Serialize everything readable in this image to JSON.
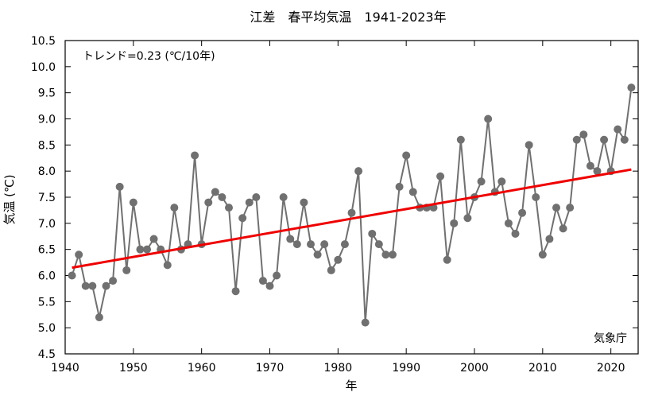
{
  "chart_data": {
    "type": "line",
    "title": "江差　春平均気温　1941-2023年",
    "xlabel": "年",
    "ylabel": "気温 (℃)",
    "annotation": "トレンド=0.23 (℃/10年)",
    "source": "気象庁",
    "xlim": [
      1940,
      2024
    ],
    "ylim": [
      4.5,
      10.5
    ],
    "x_ticks": [
      "1940",
      "1950",
      "1960",
      "1970",
      "1980",
      "1990",
      "2000",
      "2010",
      "2020"
    ],
    "y_ticks": [
      "4.5",
      "5.0",
      "5.5",
      "6.0",
      "6.5",
      "7.0",
      "7.5",
      "8.0",
      "8.5",
      "9.0",
      "9.5",
      "10.0",
      "10.5"
    ],
    "grid": false,
    "series": [
      {
        "color": "#707070",
        "x": [
          1941,
          1942,
          1943,
          1944,
          1945,
          1946,
          1947,
          1948,
          1949,
          1950,
          1951,
          1952,
          1953,
          1954,
          1955,
          1956,
          1957,
          1958,
          1959,
          1960,
          1961,
          1962,
          1963,
          1964,
          1965,
          1966,
          1967,
          1968,
          1969,
          1970,
          1971,
          1972,
          1973,
          1974,
          1975,
          1976,
          1977,
          1978,
          1979,
          1980,
          1981,
          1982,
          1983,
          1984,
          1985,
          1986,
          1987,
          1988,
          1989,
          1990,
          1991,
          1992,
          1993,
          1994,
          1995,
          1996,
          1997,
          1998,
          1999,
          2000,
          2001,
          2002,
          2003,
          2004,
          2005,
          2006,
          2007,
          2008,
          2009,
          2010,
          2011,
          2012,
          2013,
          2014,
          2015,
          2016,
          2017,
          2018,
          2019,
          2020,
          2021,
          2022,
          2023
        ],
        "values": [
          6.0,
          6.4,
          5.8,
          5.8,
          5.2,
          5.8,
          5.9,
          7.7,
          6.1,
          7.4,
          6.5,
          6.5,
          6.7,
          6.5,
          6.2,
          7.3,
          6.5,
          6.6,
          8.3,
          6.6,
          7.4,
          7.6,
          7.5,
          7.3,
          5.7,
          7.1,
          7.4,
          7.5,
          5.9,
          5.8,
          6.0,
          7.5,
          6.7,
          6.6,
          7.4,
          6.6,
          6.4,
          6.6,
          6.1,
          6.3,
          6.6,
          7.2,
          8.0,
          5.1,
          6.8,
          6.6,
          6.4,
          6.4,
          7.7,
          8.3,
          7.6,
          7.3,
          7.3,
          7.3,
          7.9,
          6.3,
          7.0,
          8.6,
          7.1,
          7.5,
          7.8,
          9.0,
          7.6,
          7.8,
          7.0,
          6.8,
          7.2,
          8.5,
          7.5,
          6.4,
          6.7,
          7.3,
          6.9,
          7.3,
          8.6,
          8.7,
          8.1,
          8.0,
          8.6,
          8.0,
          8.8,
          8.6,
          9.6
        ]
      },
      {
        "type": "trend",
        "color": "#ee0000",
        "x": [
          1941,
          2023
        ],
        "values": [
          6.15,
          8.03
        ]
      }
    ]
  }
}
